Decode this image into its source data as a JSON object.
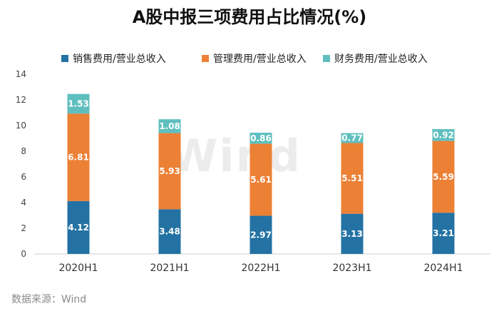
{
  "chart_data": {
    "type": "bar",
    "stacked": true,
    "title": "A股中报三项费用占比情况(%)",
    "categories": [
      "2020H1",
      "2021H1",
      "2022H1",
      "2023H1",
      "2024H1"
    ],
    "series": [
      {
        "name": "销售费用/营业总收入",
        "color": "#2372a3",
        "values": [
          4.12,
          3.48,
          2.97,
          3.13,
          3.21
        ]
      },
      {
        "name": "管理费用/营业总收入",
        "color": "#ec8035",
        "values": [
          6.81,
          5.93,
          5.61,
          5.51,
          5.59
        ]
      },
      {
        "name": "财务费用/营业总收入",
        "color": "#5fbfbf",
        "values": [
          1.53,
          1.08,
          0.86,
          0.77,
          0.92
        ]
      }
    ],
    "ylim": [
      0,
      14
    ],
    "yticks": [
      0,
      2,
      4,
      6,
      8,
      10,
      12,
      14
    ],
    "grid": false,
    "legend": "top-center",
    "xlabel": "",
    "ylabel": ""
  },
  "watermark": "Wind",
  "source": "数据来源：Wind"
}
